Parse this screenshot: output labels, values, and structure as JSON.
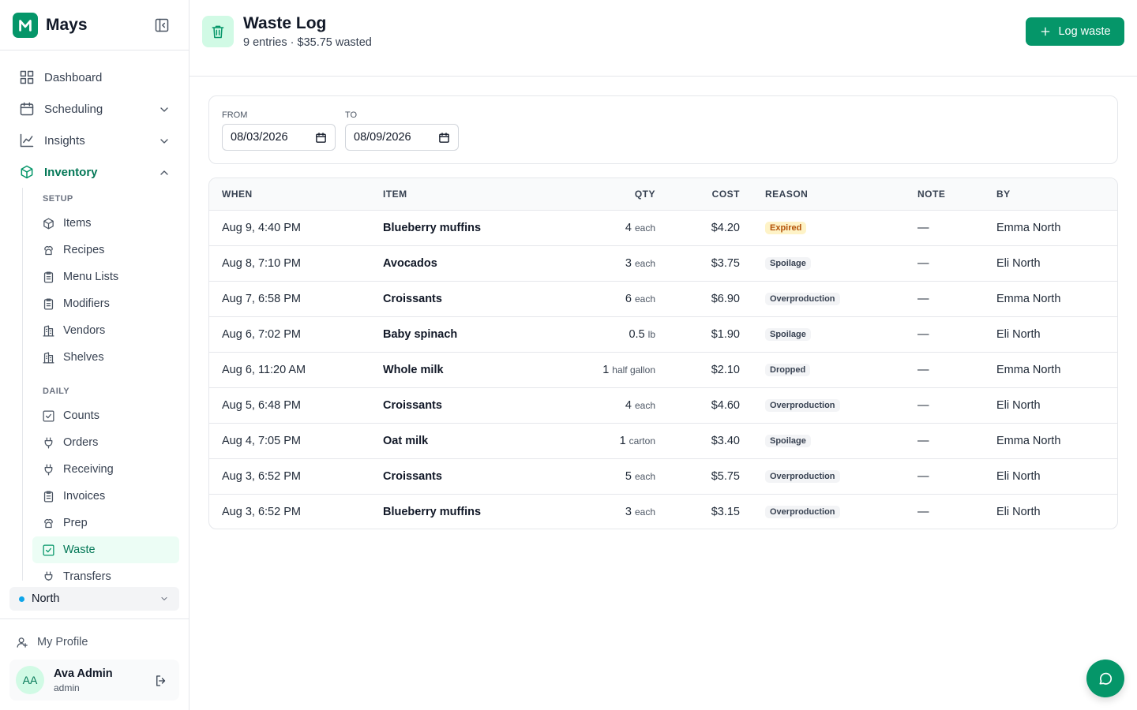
{
  "sidebar": {
    "brand": "Mays",
    "nav": [
      {
        "label": "Dashboard"
      },
      {
        "label": "Scheduling",
        "chevron": "down"
      },
      {
        "label": "Insights",
        "chevron": "down"
      },
      {
        "label": "Inventory",
        "chevron": "up",
        "active": true
      }
    ],
    "sections": [
      {
        "title": "SETUP",
        "items": [
          {
            "label": "Items"
          },
          {
            "label": "Recipes"
          },
          {
            "label": "Menu Lists"
          },
          {
            "label": "Modifiers"
          },
          {
            "label": "Vendors"
          },
          {
            "label": "Shelves"
          }
        ]
      },
      {
        "title": "DAILY",
        "items": [
          {
            "label": "Counts"
          },
          {
            "label": "Orders"
          },
          {
            "label": "Receiving"
          },
          {
            "label": "Invoices"
          },
          {
            "label": "Prep"
          },
          {
            "label": "Waste",
            "active": true
          },
          {
            "label": "Transfers"
          }
        ]
      }
    ],
    "location": "North",
    "profile": "My Profile",
    "user": {
      "initials": "AA",
      "name": "Ava Admin",
      "role": "admin"
    }
  },
  "header": {
    "title": "Waste Log",
    "subtitle": "9 entries · $35.75 wasted",
    "button": "Log waste"
  },
  "filters": {
    "from_label": "FROM",
    "from": "08/03/2026",
    "to_label": "TO",
    "to": "08/09/2026"
  },
  "table": {
    "columns": [
      "WHEN",
      "ITEM",
      "QTY",
      "COST",
      "REASON",
      "NOTE",
      "BY"
    ],
    "rows": [
      {
        "when": "Aug 9, 4:40 PM",
        "item": "Blueberry muffins",
        "qty": "4",
        "unit": "each",
        "cost": "$4.20",
        "reason": "Expired",
        "reason_bg": "#fef3c7",
        "reason_fg": "#b45309",
        "note": "—",
        "by": "Emma North"
      },
      {
        "when": "Aug 8, 7:10 PM",
        "item": "Avocados",
        "qty": "3",
        "unit": "each",
        "cost": "$3.75",
        "reason": "Spoilage",
        "reason_bg": "#f3f4f6",
        "reason_fg": "#374151",
        "note": "—",
        "by": "Eli North"
      },
      {
        "when": "Aug 7, 6:58 PM",
        "item": "Croissants",
        "qty": "6",
        "unit": "each",
        "cost": "$6.90",
        "reason": "Overproduction",
        "reason_bg": "#f3f4f6",
        "reason_fg": "#374151",
        "note": "—",
        "by": "Emma North"
      },
      {
        "when": "Aug 6, 7:02 PM",
        "item": "Baby spinach",
        "qty": "0.5",
        "unit": "lb",
        "cost": "$1.90",
        "reason": "Spoilage",
        "reason_bg": "#f3f4f6",
        "reason_fg": "#374151",
        "note": "—",
        "by": "Eli North"
      },
      {
        "when": "Aug 6, 11:20 AM",
        "item": "Whole milk",
        "qty": "1",
        "unit": "half gallon",
        "cost": "$2.10",
        "reason": "Dropped",
        "reason_bg": "#f3f4f6",
        "reason_fg": "#374151",
        "note": "—",
        "by": "Emma North"
      },
      {
        "when": "Aug 5, 6:48 PM",
        "item": "Croissants",
        "qty": "4",
        "unit": "each",
        "cost": "$4.60",
        "reason": "Overproduction",
        "reason_bg": "#f3f4f6",
        "reason_fg": "#374151",
        "note": "—",
        "by": "Eli North"
      },
      {
        "when": "Aug 4, 7:05 PM",
        "item": "Oat milk",
        "qty": "1",
        "unit": "carton",
        "cost": "$3.40",
        "reason": "Spoilage",
        "reason_bg": "#f3f4f6",
        "reason_fg": "#374151",
        "note": "—",
        "by": "Emma North"
      },
      {
        "when": "Aug 3, 6:52 PM",
        "item": "Croissants",
        "qty": "5",
        "unit": "each",
        "cost": "$5.75",
        "reason": "Overproduction",
        "reason_bg": "#f3f4f6",
        "reason_fg": "#374151",
        "note": "—",
        "by": "Eli North"
      },
      {
        "when": "Aug 3, 6:52 PM",
        "item": "Blueberry muffins",
        "qty": "3",
        "unit": "each",
        "cost": "$3.15",
        "reason": "Overproduction",
        "reason_bg": "#f3f4f6",
        "reason_fg": "#374151",
        "note": "—",
        "by": "Eli North"
      }
    ]
  }
}
